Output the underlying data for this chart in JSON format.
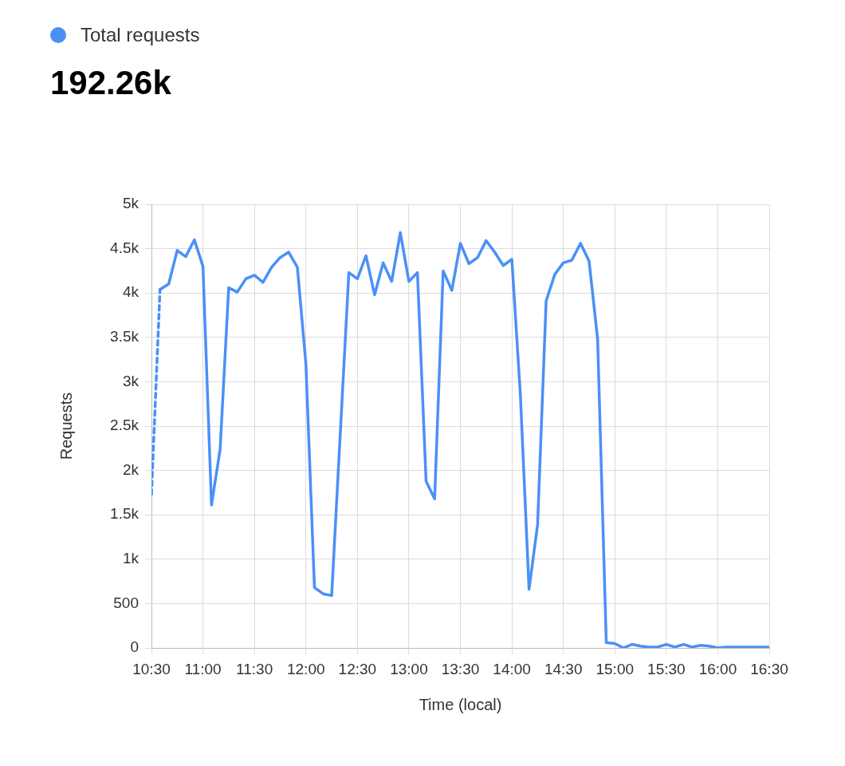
{
  "chart_data": {
    "type": "line",
    "xlabel": "Time (local)",
    "ylabel": "Requests",
    "annotations": [
      "192.26k"
    ],
    "legend": "top left",
    "grid": true,
    "marker": "none",
    "xlim": [
      10.5,
      16.5
    ],
    "xticks": [
      {
        "value": 10.5,
        "label": "10:30"
      },
      {
        "value": 11,
        "label": "11:00"
      },
      {
        "value": 11.5,
        "label": "11:30"
      },
      {
        "value": 12,
        "label": "12:00"
      },
      {
        "value": 12.5,
        "label": "12:30"
      },
      {
        "value": 13,
        "label": "13:00"
      },
      {
        "value": 13.5,
        "label": "13:30"
      },
      {
        "value": 14,
        "label": "14:00"
      },
      {
        "value": 14.5,
        "label": "14:30"
      },
      {
        "value": 15,
        "label": "15:00"
      },
      {
        "value": 15.5,
        "label": "15:30"
      },
      {
        "value": 16,
        "label": "16:00"
      },
      {
        "value": 16.5,
        "label": "16:30"
      }
    ],
    "ylim": [
      0,
      5000
    ],
    "yticks": [
      0,
      500,
      {
        "value": 1000,
        "label": "1k"
      },
      {
        "value": 1500,
        "label": "1.5k"
      },
      {
        "value": 2000,
        "label": "2k"
      },
      {
        "value": 2500,
        "label": "2.5k"
      },
      {
        "value": 3000,
        "label": "3k"
      },
      {
        "value": 3500,
        "label": "3.5k"
      },
      {
        "value": 4000,
        "label": "4k"
      },
      {
        "value": 4500,
        "label": "4.5k"
      },
      {
        "value": 5000,
        "label": "5k"
      }
    ],
    "series": [
      {
        "color": "#4a90f7",
        "line_style": "dashed",
        "x": [
          10.5,
          10.583
        ],
        "values": [
          1730,
          4040
        ]
      },
      {
        "name": "Total requests",
        "color": "#4a90f7",
        "line_style": "solid",
        "x": [
          10.583,
          10.667,
          10.75,
          10.833,
          10.917,
          11,
          11.083,
          11.167,
          11.25,
          11.333,
          11.417,
          11.5,
          11.583,
          11.667,
          11.75,
          11.833,
          11.917,
          12,
          12.083,
          12.167,
          12.25,
          12.333,
          12.417,
          12.5,
          12.583,
          12.667,
          12.75,
          12.833,
          12.917,
          13,
          13.083,
          13.167,
          13.25,
          13.333,
          13.417,
          13.5,
          13.583,
          13.667,
          13.75,
          13.833,
          13.917,
          14,
          14.083,
          14.167,
          14.25,
          14.333,
          14.417,
          14.5,
          14.583,
          14.667,
          14.75,
          14.833,
          14.917,
          15,
          15.083,
          15.167,
          15.25,
          15.333,
          15.417,
          15.5,
          15.583,
          15.667,
          15.75,
          15.833,
          15.917,
          16,
          16.083,
          16.167,
          16.25,
          16.333,
          16.417,
          16.5
        ],
        "values": [
          4040,
          4100,
          4480,
          4410,
          4600,
          4300,
          1610,
          2240,
          4060,
          4010,
          4160,
          4200,
          4120,
          4290,
          4400,
          4460,
          4290,
          3200,
          680,
          610,
          590,
          2400,
          4230,
          4160,
          4420,
          3980,
          4340,
          4130,
          4680,
          4130,
          4230,
          1880,
          1680,
          4250,
          4030,
          4560,
          4330,
          4400,
          4590,
          4460,
          4310,
          4380,
          2850,
          660,
          1390,
          3910,
          4210,
          4340,
          4370,
          4560,
          4360,
          3480,
          60,
          50,
          0,
          40,
          20,
          10,
          10,
          40,
          10,
          40,
          10,
          30,
          20,
          0,
          10,
          10,
          10,
          10,
          10,
          10
        ]
      }
    ]
  }
}
